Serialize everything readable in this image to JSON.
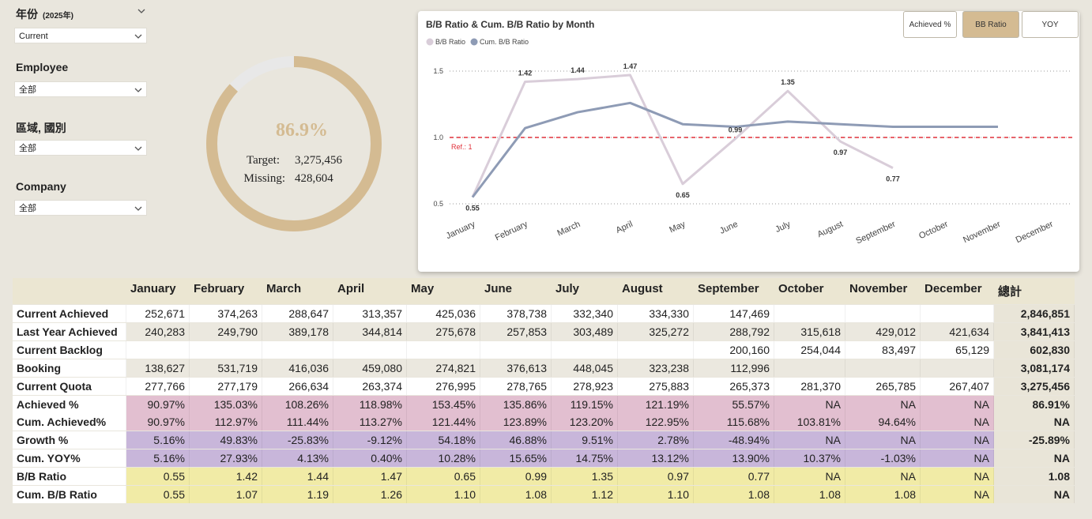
{
  "filters": [
    {
      "label": "年份",
      "note": "(2025年)",
      "selected": "Current"
    },
    {
      "label": "Employee",
      "selected": "全部"
    },
    {
      "label": "區域, 國別",
      "selected": "全部"
    },
    {
      "label": "Company",
      "selected": "全部"
    }
  ],
  "gauge": {
    "value": 86.9,
    "value_label": "86.9%",
    "target_label": "Target:",
    "target": "3,275,456",
    "missing_label": "Missing:",
    "missing": "428,604",
    "color": "#d4bb92",
    "track_color": "#e8e8e8"
  },
  "buttons": [
    {
      "label": "Achieved %",
      "active": false
    },
    {
      "label": "BB Ratio",
      "active": true
    },
    {
      "label": "YOY",
      "active": false
    }
  ],
  "chart_data": {
    "type": "line",
    "title": "B/B Ratio & Cum. B/B Ratio by Month",
    "categories": [
      "January",
      "February",
      "March",
      "April",
      "May",
      "June",
      "July",
      "August",
      "September",
      "October",
      "November",
      "December"
    ],
    "series": [
      {
        "name": "B/B Ratio",
        "color": "#d9cdd9",
        "values": [
          0.55,
          1.42,
          1.44,
          1.47,
          0.65,
          0.99,
          1.35,
          0.97,
          0.77,
          null,
          null,
          null
        ],
        "labels": true
      },
      {
        "name": "Cum. B/B Ratio",
        "color": "#8e9bb5",
        "values": [
          0.55,
          1.07,
          1.19,
          1.26,
          1.1,
          1.08,
          1.12,
          1.1,
          1.08,
          1.08,
          1.08,
          null
        ],
        "labels": false
      }
    ],
    "ylim": [
      0.44,
      1.6
    ],
    "yticks": [
      0.5,
      {
        "value": 1,
        "label": "1.0"
      },
      1.5
    ],
    "grid": true,
    "reference": {
      "value": 1,
      "label": "Ref.: 1",
      "color": "#e0303a"
    }
  },
  "table": {
    "columns": [
      "January",
      "February",
      "March",
      "April",
      "May",
      "June",
      "July",
      "August",
      "September",
      "October",
      "November",
      "December",
      "總計"
    ],
    "rows": [
      {
        "label": "Current Achieved",
        "color": "#ffffff",
        "cells": [
          "252,671",
          "374,263",
          "288,647",
          "313,357",
          "425,036",
          "378,738",
          "332,340",
          "334,330",
          "147,469",
          null,
          null,
          null,
          "2,846,851"
        ]
      },
      {
        "label": "Last Year Achieved",
        "color": "#ebe8df",
        "cells": [
          "240,283",
          "249,790",
          "389,178",
          "344,814",
          "275,678",
          "257,853",
          "303,489",
          "325,272",
          "288,792",
          "315,618",
          "429,012",
          "421,634",
          "3,841,413"
        ]
      },
      {
        "label": "Current Backlog",
        "color": "#ffffff",
        "cells": [
          null,
          null,
          null,
          null,
          null,
          null,
          null,
          null,
          "200,160",
          "254,044",
          "83,497",
          "65,129",
          "602,830"
        ]
      },
      {
        "label": "Booking",
        "color": "#ebe8df",
        "cells": [
          "138,627",
          "531,719",
          "416,036",
          "459,080",
          "274,821",
          "376,613",
          "448,045",
          "323,238",
          "112,996",
          null,
          null,
          null,
          "3,081,174"
        ]
      },
      {
        "label": "Current Quota",
        "color": "#ffffff",
        "cells": [
          "277,766",
          "277,179",
          "266,634",
          "263,374",
          "276,995",
          "278,765",
          "278,923",
          "275,883",
          "265,373",
          "281,370",
          "265,785",
          "267,407",
          "3,275,456"
        ]
      },
      {
        "label": "Achieved %",
        "color": "#e2bfd0",
        "cells": [
          "90.97%",
          "135.03%",
          "108.26%",
          "118.98%",
          "153.45%",
          "135.86%",
          "119.15%",
          "121.19%",
          "55.57%",
          "NA",
          "NA",
          "NA",
          "86.91%"
        ]
      },
      {
        "label": "Cum. Achieved%",
        "color": "#e2bfd0",
        "cells": [
          "90.97%",
          "112.97%",
          "111.44%",
          "113.27%",
          "121.44%",
          "123.89%",
          "123.20%",
          "122.95%",
          "115.68%",
          "103.81%",
          "94.64%",
          "NA",
          "NA"
        ]
      },
      {
        "label": "Growth %",
        "color": "#c8b6da",
        "cells": [
          "5.16%",
          "49.83%",
          "-25.83%",
          "-9.12%",
          "54.18%",
          "46.88%",
          "9.51%",
          "2.78%",
          "-48.94%",
          "NA",
          "NA",
          "NA",
          "-25.89%"
        ]
      },
      {
        "label": "Cum. YOY%",
        "color": "#c8b6da",
        "cells": [
          "5.16%",
          "27.93%",
          "4.13%",
          "0.40%",
          "10.28%",
          "15.65%",
          "14.75%",
          "13.12%",
          "13.90%",
          "10.37%",
          "-1.03%",
          "NA",
          "NA"
        ]
      },
      {
        "label": "B/B Ratio",
        "color": "#f1eba6",
        "cells": [
          "0.55",
          "1.42",
          "1.44",
          "1.47",
          "0.65",
          "0.99",
          "1.35",
          "0.97",
          "0.77",
          "NA",
          "NA",
          "NA",
          "1.08"
        ]
      },
      {
        "label": "Cum. B/B Ratio",
        "color": "#f1eba6",
        "cells": [
          "0.55",
          "1.07",
          "1.19",
          "1.26",
          "1.10",
          "1.08",
          "1.12",
          "1.10",
          "1.08",
          "1.08",
          "1.08",
          "NA",
          "NA"
        ]
      }
    ]
  }
}
